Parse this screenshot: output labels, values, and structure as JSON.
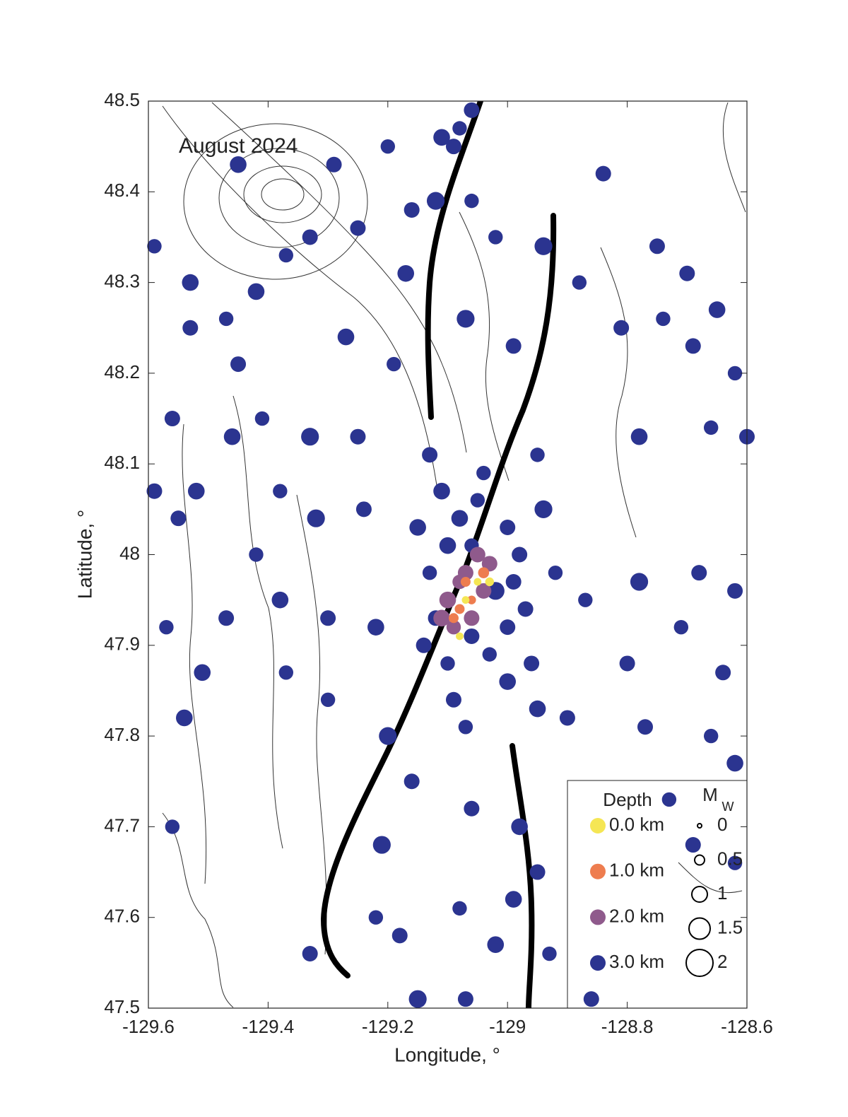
{
  "chart_data": {
    "type": "scatter",
    "title": "August 2024",
    "xlabel": "Longitude, °",
    "ylabel": "Latitude, °",
    "xlim": [
      -129.6,
      -128.6
    ],
    "ylim": [
      47.5,
      48.5
    ],
    "xticks": [
      -129.6,
      -129.4,
      -129.2,
      -129,
      -128.8,
      -128.6
    ],
    "yticks": [
      47.5,
      47.6,
      47.7,
      47.8,
      47.9,
      48,
      48.1,
      48.2,
      48.3,
      48.4,
      48.5
    ],
    "legend_title": "Depth",
    "legend_position": "lower right",
    "size_legend": {
      "title": "M",
      "title_sub": "W",
      "values": [
        0,
        0.5,
        1,
        1.5,
        2
      ]
    },
    "series": [
      {
        "name": "3.0 km",
        "color": "#2b3490",
        "x": [
          -129.06,
          -129.08,
          -129.11,
          -129.2,
          -129.09,
          -129.29,
          -129.45,
          -129.06,
          -129.12,
          -129.16,
          -128.84,
          -129.59,
          -129.53,
          -129.37,
          -129.33,
          -129.25,
          -129.17,
          -129.02,
          -128.94,
          -128.75,
          -128.7,
          -128.88,
          -129.42,
          -129.47,
          -129.53,
          -129.45,
          -129.27,
          -129.19,
          -129.07,
          -128.99,
          -128.81,
          -128.74,
          -128.65,
          -128.62,
          -128.69,
          -129.56,
          -129.46,
          -129.41,
          -129.33,
          -129.25,
          -129.13,
          -128.95,
          -128.78,
          -128.66,
          -128.6,
          -129.59,
          -129.52,
          -129.38,
          -129.32,
          -129.24,
          -129.55,
          -129.42,
          -129.38,
          -129.57,
          -129.47,
          -129.3,
          -129.22,
          -128.87,
          -128.78,
          -128.68,
          -128.62,
          -128.71,
          -129.51,
          -129.37,
          -128.8,
          -128.64,
          -129.54,
          -129.3,
          -129.2,
          -128.9,
          -128.77,
          -128.66,
          -128.62,
          -129.56,
          -129.16,
          -129.06,
          -128.98,
          -128.73,
          -129.21,
          -128.95,
          -128.69,
          -129.08,
          -128.99,
          -129.22,
          -129.33,
          -129.18,
          -129.02,
          -128.93,
          -129.15,
          -129.07,
          -128.86,
          -128.62,
          -129.08,
          -129.05,
          -129.0,
          -128.98,
          -129.1,
          -129.13,
          -129.02,
          -128.97,
          -129.06,
          -129.1,
          -129.0,
          -129.03,
          -128.96,
          -129.12,
          -129.15,
          -129.04,
          -128.94,
          -129.09,
          -128.99,
          -129.06,
          -129.11,
          -128.92,
          -129.14,
          -129.0,
          -128.95,
          -129.07
        ],
        "y": [
          48.49,
          48.47,
          48.46,
          48.45,
          48.45,
          48.43,
          48.43,
          48.39,
          48.39,
          48.38,
          48.42,
          48.34,
          48.3,
          48.33,
          48.35,
          48.36,
          48.31,
          48.35,
          48.34,
          48.34,
          48.31,
          48.3,
          48.29,
          48.26,
          48.25,
          48.21,
          48.24,
          48.21,
          48.26,
          48.23,
          48.25,
          48.26,
          48.27,
          48.2,
          48.23,
          48.15,
          48.13,
          48.15,
          48.13,
          48.13,
          48.11,
          48.11,
          48.13,
          48.14,
          48.13,
          48.07,
          48.07,
          48.07,
          48.04,
          48.05,
          48.04,
          48.0,
          47.95,
          47.92,
          47.93,
          47.93,
          47.92,
          47.95,
          47.97,
          47.98,
          47.96,
          47.92,
          47.87,
          47.87,
          47.88,
          47.87,
          47.82,
          47.84,
          47.8,
          47.82,
          47.81,
          47.8,
          47.77,
          47.7,
          47.75,
          47.72,
          47.7,
          47.73,
          47.68,
          47.65,
          47.68,
          47.61,
          47.62,
          47.6,
          47.56,
          47.58,
          47.57,
          47.56,
          47.51,
          47.51,
          47.51,
          47.66,
          48.04,
          48.06,
          48.03,
          48.0,
          48.01,
          47.98,
          47.96,
          47.94,
          47.91,
          47.88,
          47.86,
          47.89,
          47.88,
          47.93,
          48.03,
          48.09,
          48.05,
          47.84,
          47.97,
          48.01,
          48.07,
          47.98,
          47.9,
          47.92,
          47.83,
          47.81
        ],
        "size": [
          1,
          0.9,
          1.1,
          0.9,
          1,
          1,
          1.1,
          0.9,
          1.2,
          1,
          1,
          0.9,
          1.1,
          0.9,
          1,
          1,
          1.1,
          0.9,
          1.2,
          1,
          1,
          0.9,
          1.1,
          0.9,
          1,
          1,
          1.1,
          0.9,
          1.2,
          1,
          1,
          0.9,
          1.1,
          0.9,
          1,
          1,
          1.1,
          0.9,
          1.2,
          1,
          1,
          0.9,
          1.1,
          0.9,
          1,
          1,
          1.1,
          0.9,
          1.2,
          1,
          1,
          0.9,
          1.1,
          0.9,
          1,
          1,
          1.1,
          0.9,
          1.2,
          1,
          1,
          0.9,
          1.1,
          0.9,
          1,
          1,
          1.1,
          0.9,
          1.2,
          1,
          1,
          0.9,
          1.1,
          0.9,
          1,
          1,
          1.1,
          0.9,
          1.2,
          1,
          1,
          0.9,
          1.1,
          0.9,
          1,
          1,
          1.1,
          0.9,
          1.2,
          1,
          1,
          0.9,
          1.1,
          0.9,
          1,
          1,
          1.1,
          0.9,
          1.2,
          1,
          1,
          0.9,
          1.1,
          0.9,
          1,
          1,
          1.1,
          0.9,
          1.2,
          1,
          1,
          0.9,
          1.1,
          0.9,
          1,
          1,
          1.1,
          0.9
        ]
      },
      {
        "name": "2.0 km",
        "color": "#8f5a8c",
        "x": [
          -129.05,
          -129.07,
          -129.1,
          -129.09,
          -129.04,
          -129.06,
          -129.08,
          -129.03,
          -129.11
        ],
        "y": [
          48.0,
          47.98,
          47.95,
          47.92,
          47.96,
          47.93,
          47.97,
          47.99,
          47.93
        ],
        "size": [
          1,
          1,
          1.1,
          0.9,
          1,
          1,
          0.9,
          1,
          1.1
        ]
      },
      {
        "name": "1.0 km",
        "color": "#ee7d4f",
        "x": [
          -129.07,
          -129.04,
          -129.08,
          -129.06,
          -129.09
        ],
        "y": [
          47.97,
          47.98,
          47.94,
          47.95,
          47.93
        ],
        "size": [
          0.5,
          0.6,
          0.5,
          0.4,
          0.5
        ]
      },
      {
        "name": "0.0 km",
        "color": "#f5e654",
        "x": [
          -129.05,
          -129.03,
          -129.07,
          -129.08
        ],
        "y": [
          47.97,
          47.97,
          47.95,
          47.91
        ],
        "size": [
          0.3,
          0.4,
          0.3,
          0.3
        ]
      }
    ]
  }
}
